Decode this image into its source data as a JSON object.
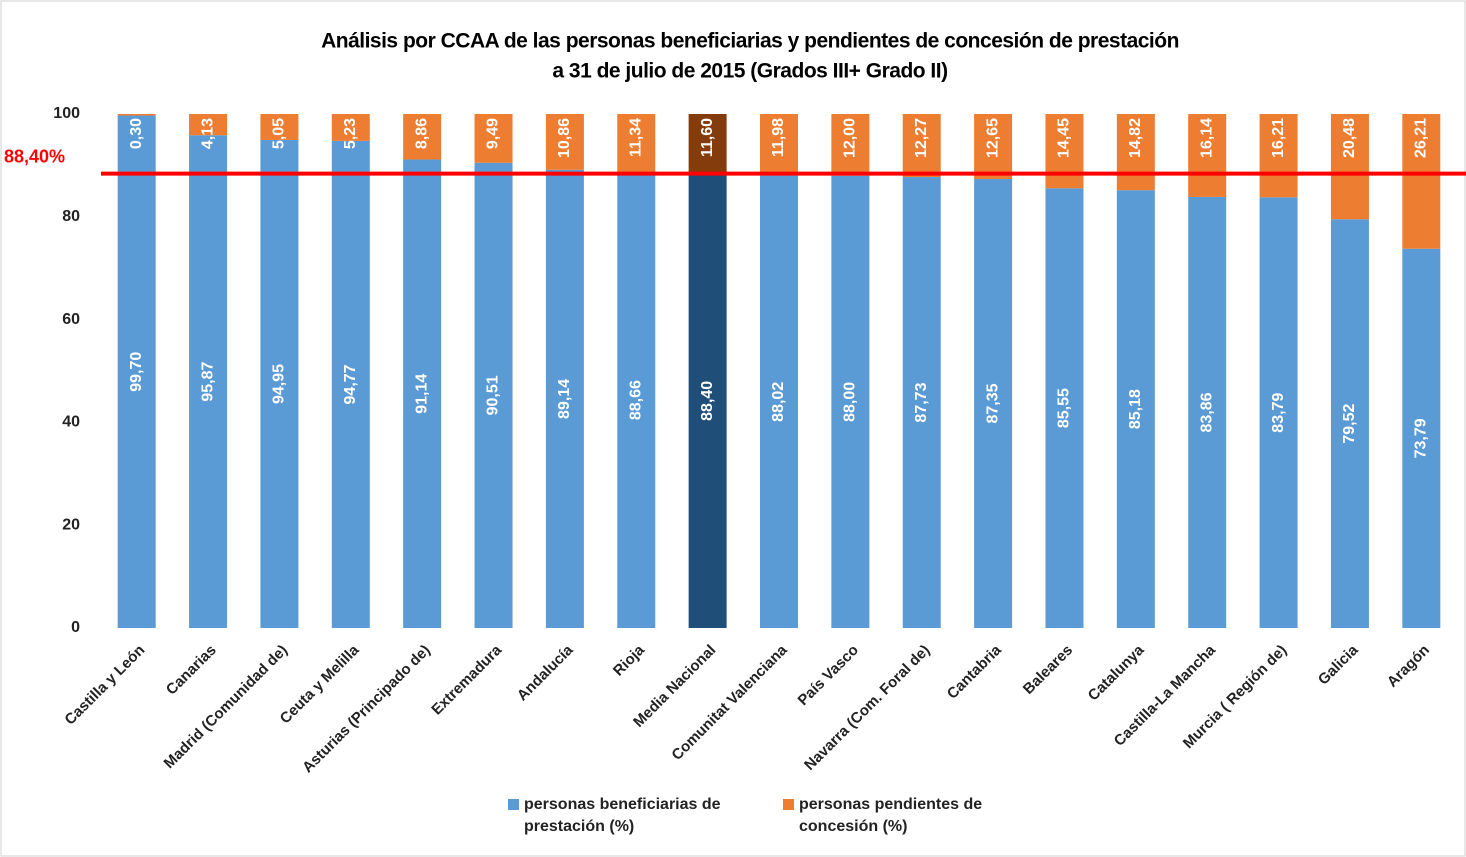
{
  "chart_data": {
    "type": "stacked_bar",
    "title": "Análisis por CCAA de las personas beneficiarias y pendientes de concesión de prestación",
    "subtitle": "a 31 de julio de 2015 (Grados III+ Grado II)",
    "categories": [
      "Castilla y León",
      "Canarias",
      "Madrid (Comunidad de)",
      "Ceuta y Melilla",
      "Asturias (Principado de)",
      "Extremadura",
      "Andalucía",
      "Rioja",
      "Media Nacional",
      "Comunitat Valenciana",
      "País Vasco",
      "Navarra (Com. Foral de)",
      "Cantabria",
      "Baleares",
      "Catalunya",
      "Castilla-La Mancha",
      "Murcia ( Región de)",
      "Galicia",
      "Aragón"
    ],
    "series": [
      {
        "name": "personas beneficiarias de prestación (%)",
        "color": "#5b9bd5",
        "highlight_color": "#1f4e79",
        "values": [
          99.7,
          95.87,
          94.95,
          94.77,
          91.14,
          90.51,
          89.14,
          88.66,
          88.4,
          88.02,
          88.0,
          87.73,
          87.35,
          85.55,
          85.18,
          83.86,
          83.79,
          79.52,
          73.79
        ],
        "value_labels": [
          "99,70",
          "95,87",
          "94,95",
          "94,77",
          "91,14",
          "90,51",
          "89,14",
          "88,66",
          "88,40",
          "88,02",
          "88,00",
          "87,73",
          "87,35",
          "85,55",
          "85,18",
          "83,86",
          "83,79",
          "79,52",
          "73,79"
        ]
      },
      {
        "name": "personas pendientes de concesión (%)",
        "color": "#ed7d31",
        "highlight_color": "#843c0c",
        "values": [
          0.3,
          4.13,
          5.05,
          5.23,
          8.86,
          9.49,
          10.86,
          11.34,
          11.6,
          11.98,
          12.0,
          12.27,
          12.65,
          14.45,
          14.82,
          16.14,
          16.21,
          20.48,
          26.21
        ],
        "value_labels": [
          "0,30",
          "4,13",
          "5,05",
          "5,23",
          "8,86",
          "9,49",
          "10,86",
          "11,34",
          "11,60",
          "11,98",
          "12,00",
          "12,27",
          "12,65",
          "14,45",
          "14,82",
          "16,14",
          "16,21",
          "20,48",
          "26,21"
        ]
      }
    ],
    "highlight_index": 8,
    "reference_line": {
      "value": 88.4,
      "label": "88,40%",
      "color": "#ff0000"
    },
    "ylim": [
      0,
      100
    ],
    "yticks": [
      0,
      20,
      40,
      60,
      80,
      100
    ],
    "grid": false,
    "legend": "bottom"
  }
}
